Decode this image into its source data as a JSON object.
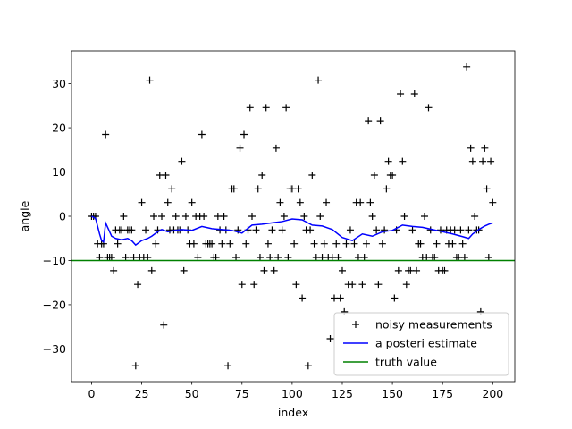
{
  "chart_data": {
    "type": "line",
    "xlabel": "index",
    "ylabel": "angle",
    "xlim": [
      -10,
      211
    ],
    "ylim": [
      -37.4,
      37.4
    ],
    "xticks": [
      0,
      25,
      50,
      75,
      100,
      125,
      150,
      175,
      200
    ],
    "yticks": [
      {
        "value": -30,
        "label": "−30"
      },
      {
        "value": -20,
        "label": "−20"
      },
      {
        "value": -10,
        "label": "−10"
      },
      0,
      10,
      20,
      30
    ],
    "legend": "lower right",
    "series": [
      {
        "name": "noisy measurements",
        "type": "scatter",
        "color": "#000000",
        "x": [
          0,
          1,
          2,
          3,
          4,
          5,
          6,
          7,
          8,
          9,
          10,
          11,
          12,
          13,
          14,
          15,
          16,
          17,
          18,
          19,
          20,
          21,
          22,
          23,
          24,
          25,
          26,
          27,
          28,
          29,
          30,
          31,
          32,
          33,
          34,
          35,
          36,
          37,
          38,
          39,
          40,
          41,
          42,
          43,
          44,
          45,
          46,
          47,
          48,
          49,
          50,
          51,
          52,
          53,
          54,
          55,
          56,
          57,
          58,
          59,
          60,
          61,
          62,
          63,
          64,
          65,
          66,
          67,
          68,
          69,
          70,
          71,
          72,
          73,
          74,
          75,
          76,
          77,
          78,
          79,
          80,
          81,
          82,
          83,
          84,
          85,
          86,
          87,
          88,
          89,
          90,
          91,
          92,
          93,
          94,
          95,
          96,
          97,
          98,
          99,
          100,
          101,
          102,
          103,
          104,
          105,
          106,
          107,
          108,
          109,
          110,
          111,
          112,
          113,
          114,
          115,
          116,
          117,
          118,
          119,
          120,
          121,
          122,
          123,
          124,
          125,
          126,
          127,
          128,
          129,
          130,
          131,
          132,
          133,
          134,
          135,
          136,
          137,
          138,
          139,
          140,
          141,
          142,
          143,
          144,
          145,
          146,
          147,
          148,
          149,
          150,
          151,
          152,
          153,
          154,
          155,
          156,
          157,
          158,
          159,
          160,
          161,
          162,
          163,
          164,
          165,
          166,
          167,
          168,
          169,
          170,
          171,
          172,
          173,
          174,
          175,
          176,
          177,
          178,
          179,
          180,
          181,
          182,
          183,
          184,
          185,
          186,
          187,
          188,
          189,
          190,
          191,
          192,
          193,
          194,
          195,
          196,
          197,
          198,
          199,
          200
        ],
        "values": [
          0,
          0,
          0,
          -6.2,
          -9.3,
          -6.2,
          -6.2,
          18.5,
          -9.3,
          -9.3,
          -9.3,
          -12.3,
          -3.1,
          -6.2,
          -3.1,
          -3.1,
          0,
          -9.3,
          -3.1,
          -3.1,
          -3.1,
          -9.3,
          -33.8,
          -15.4,
          -9.3,
          3.1,
          -9.3,
          -3.1,
          -9.3,
          30.8,
          -12.3,
          0,
          -6.2,
          -3.1,
          9.3,
          0,
          -24.6,
          9.3,
          3.1,
          -3.1,
          6.2,
          -3.1,
          0,
          -3.1,
          -3.1,
          12.4,
          -12.3,
          0,
          -3.1,
          -6.2,
          3.1,
          -6.2,
          0,
          -9.3,
          0,
          18.5,
          0,
          -6.2,
          -6.2,
          -6.2,
          -6.2,
          -9.3,
          -9.3,
          0,
          -3.1,
          -6.2,
          0,
          -3.1,
          -33.8,
          -6.2,
          6.2,
          6.2,
          -9.3,
          -3.1,
          15.4,
          -15.4,
          18.5,
          -6.2,
          -3.1,
          24.6,
          0,
          -15.4,
          -3.1,
          6.2,
          -9.3,
          9.3,
          -12.3,
          24.6,
          -6.2,
          -9.3,
          -3.1,
          -12.3,
          15.4,
          -9.3,
          3.1,
          -3.1,
          0,
          24.6,
          -9.3,
          6.2,
          6.2,
          -6.2,
          -15.4,
          6.2,
          3.1,
          -18.5,
          0,
          -3.1,
          -33.8,
          -3.1,
          9.3,
          -6.2,
          -9.3,
          30.8,
          0,
          -9.3,
          -6.2,
          3.1,
          -9.3,
          -27.7,
          -9.3,
          -18.5,
          -6.2,
          -9.3,
          -18.5,
          -12.3,
          -21.6,
          -6.2,
          -15.4,
          -3.1,
          -15.4,
          -6.2,
          3.1,
          -9.3,
          3.1,
          -15.4,
          -9.3,
          -6.2,
          21.6,
          3.1,
          0,
          9.3,
          -3.1,
          -15.4,
          21.6,
          -6.2,
          -3.1,
          6.2,
          12.4,
          9.3,
          9.3,
          -18.5,
          -3.1,
          -12.3,
          27.7,
          12.4,
          0,
          -15.4,
          -12.3,
          -12.3,
          -3.1,
          27.7,
          -12.3,
          -6.2,
          -6.2,
          -9.3,
          0,
          -9.3,
          24.6,
          -3.1,
          -9.3,
          -9.3,
          -6.2,
          -12.3,
          -3.1,
          -12.3,
          -12.3,
          -3.1,
          -6.2,
          -3.1,
          -6.2,
          -3.1,
          -9.3,
          -9.3,
          -3.1,
          -6.2,
          -9.3,
          33.8,
          -3.1,
          15.4,
          12.4,
          0,
          -3.1,
          -3.1,
          -21.6,
          12.4,
          15.4,
          6.2,
          -9.3,
          12.4,
          3.1
        ]
      },
      {
        "name": "a posteri estimate",
        "type": "line",
        "color": "#0000ff",
        "x": [
          0,
          2,
          4,
          5,
          6,
          7,
          8,
          10,
          12,
          15,
          18,
          20,
          22,
          25,
          28,
          30,
          33,
          35,
          38,
          40,
          45,
          50,
          55,
          60,
          65,
          70,
          75,
          80,
          85,
          90,
          95,
          100,
          105,
          110,
          115,
          120,
          125,
          130,
          135,
          140,
          145,
          150,
          155,
          160,
          165,
          170,
          175,
          180,
          185,
          188,
          190,
          193,
          196,
          198,
          200
        ],
        "values": [
          0,
          -0.5,
          -4,
          -5.5,
          -5.8,
          -1.5,
          -2.5,
          -4.5,
          -5,
          -5.3,
          -5,
          -5.5,
          -6.5,
          -5.5,
          -5,
          -4.5,
          -3.5,
          -3,
          -3.5,
          -3.3,
          -3,
          -3.2,
          -2.3,
          -2.8,
          -3,
          -3.2,
          -3.8,
          -2,
          -1.8,
          -1.5,
          -1.2,
          -0.6,
          -0.8,
          -2,
          -2.2,
          -3,
          -4.8,
          -5.5,
          -4,
          -4.5,
          -3.5,
          -3.2,
          -2,
          -2.3,
          -2.5,
          -3,
          -3.5,
          -4,
          -4.6,
          -5,
          -4,
          -3,
          -2.2,
          -1.8,
          -1.5
        ]
      },
      {
        "name": "truth value",
        "type": "hline",
        "color": "#008000",
        "value": -10
      }
    ]
  }
}
